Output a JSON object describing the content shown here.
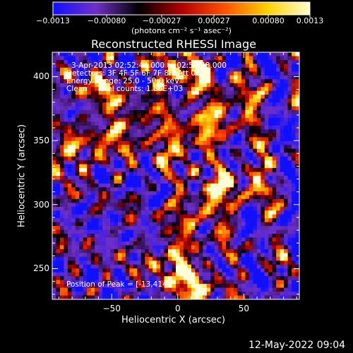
{
  "chart_data": {
    "type": "heatmap",
    "title": "Reconstructed RHESSI Image",
    "xlabel": "Heliocentric X (arcsec)",
    "ylabel": "Heliocentric Y (arcsec)",
    "xlim": [
      -95,
      92
    ],
    "ylim": [
      226,
      419
    ],
    "x_ticks": [
      -50,
      0,
      50
    ],
    "x_tick_labels": [
      "−50",
      "0",
      "50"
    ],
    "y_ticks": [
      250,
      300,
      350,
      400
    ],
    "y_tick_labels": [
      "250",
      "300",
      "350",
      "400"
    ],
    "colorbar": {
      "min": -0.0013,
      "max": 0.0013,
      "tick_labels": [
        "−0.0013",
        "−0.00080",
        "−0.00027",
        "0.00027",
        "0.00080",
        "0.0013"
      ],
      "unit_label": "(photons cm⁻² s⁻¹ asec⁻²)",
      "colors": [
        "#1010ff",
        "#7030c8",
        "#000000",
        "#b00000",
        "#ff5000",
        "#ffd000",
        "#ffffd0"
      ]
    },
    "annotations": {
      "time_range": "3-Apr-2013 02:52:44.000 to 02:53:48.000",
      "detectors": "Detectors: 3F 4F 5F 6F 7F 8F, Att 0",
      "energy_range": "Energy Range: 25.0 - 50.0 keV",
      "clean": "Clean    Total counts: 1.86E+03",
      "peak": "Position of Peak = [-13,414]"
    },
    "peak": {
      "x": -13,
      "y": 414
    },
    "bright_regions": [
      {
        "x": 5,
        "y": 400,
        "level": 0.0013
      },
      {
        "x": 40,
        "y": 375,
        "level": 0.0011
      },
      {
        "x": 5,
        "y": 350,
        "level": 0.0012
      },
      {
        "x": -40,
        "y": 360,
        "level": 0.001
      },
      {
        "x": -80,
        "y": 340,
        "level": 0.0009
      },
      {
        "x": 20,
        "y": 300,
        "level": 0.0011
      },
      {
        "x": 50,
        "y": 320,
        "level": 0.0009
      },
      {
        "x": 0,
        "y": 260,
        "level": 0.001
      },
      {
        "x": 10,
        "y": 235,
        "level": 0.0011
      },
      {
        "x": -60,
        "y": 390,
        "level": 0.0008
      }
    ]
  },
  "footer": {
    "date": "12-May-2022 09:04"
  }
}
